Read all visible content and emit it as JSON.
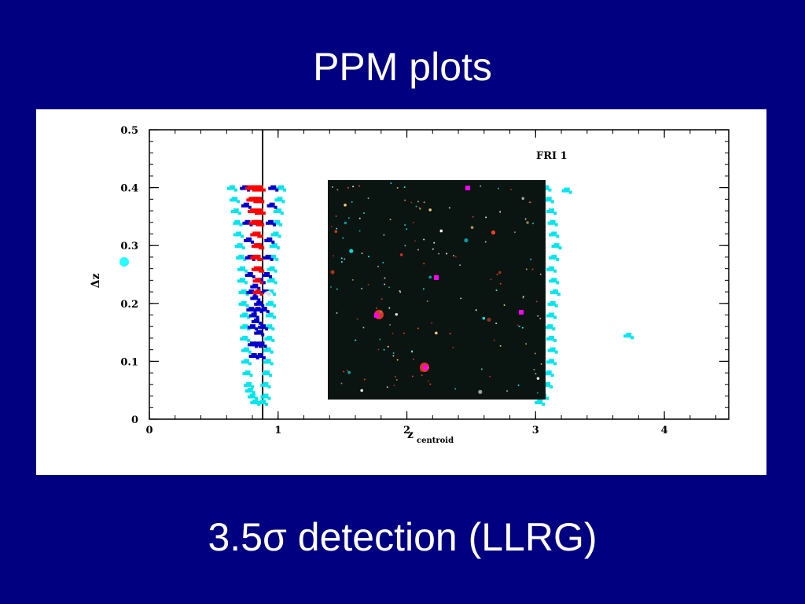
{
  "slide": {
    "title": "PPM plots",
    "caption": "3.5σ detection (LLRG)",
    "background_color": "#000080"
  },
  "chart_data": {
    "type": "scatter",
    "title": "",
    "xlabel_main": "z",
    "xlabel_sub": "centroid",
    "ylabel": "Δz",
    "annotation": "FRI 1",
    "xlim": [
      0,
      4.5
    ],
    "ylim": [
      0,
      0.5
    ],
    "x_ticks": [
      "0",
      "1",
      "2",
      "3",
      "4"
    ],
    "y_ticks": [
      "0",
      "0.1",
      "0.2",
      "0.3",
      "0.4",
      "0.5"
    ],
    "vertical_line_x": 0.88,
    "grid": false,
    "series": [
      {
        "color": "#00e5ee",
        "points": [
          [
            0.64,
            0.4
          ],
          [
            0.66,
            0.38
          ],
          [
            0.67,
            0.36
          ],
          [
            0.68,
            0.34
          ],
          [
            0.69,
            0.32
          ],
          [
            0.7,
            0.3
          ],
          [
            0.71,
            0.28
          ],
          [
            0.72,
            0.26
          ],
          [
            0.72,
            0.24
          ],
          [
            0.73,
            0.22
          ],
          [
            0.73,
            0.2
          ],
          [
            0.74,
            0.18
          ],
          [
            0.74,
            0.16
          ],
          [
            0.74,
            0.14
          ],
          [
            0.75,
            0.12
          ],
          [
            0.75,
            0.1
          ],
          [
            0.76,
            0.08
          ],
          [
            0.77,
            0.06
          ],
          [
            0.78,
            0.05
          ],
          [
            0.8,
            0.04
          ],
          [
            0.82,
            0.03
          ],
          [
            1.02,
            0.4
          ],
          [
            1.01,
            0.38
          ],
          [
            1.0,
            0.36
          ],
          [
            0.99,
            0.34
          ],
          [
            0.98,
            0.32
          ],
          [
            0.97,
            0.3
          ],
          [
            0.96,
            0.28
          ],
          [
            0.95,
            0.26
          ],
          [
            0.95,
            0.24
          ],
          [
            0.94,
            0.22
          ],
          [
            0.94,
            0.2
          ],
          [
            0.94,
            0.18
          ],
          [
            0.93,
            0.16
          ],
          [
            0.93,
            0.14
          ],
          [
            0.92,
            0.12
          ],
          [
            0.92,
            0.1
          ],
          [
            0.91,
            0.08
          ],
          [
            0.9,
            0.06
          ],
          [
            0.9,
            0.04
          ],
          [
            0.88,
            0.03
          ],
          [
            3.08,
            0.4
          ],
          [
            3.1,
            0.38
          ],
          [
            3.12,
            0.36
          ],
          [
            3.13,
            0.34
          ],
          [
            3.14,
            0.32
          ],
          [
            3.16,
            0.3
          ],
          [
            3.14,
            0.28
          ],
          [
            3.12,
            0.26
          ],
          [
            3.14,
            0.24
          ],
          [
            3.15,
            0.22
          ],
          [
            3.13,
            0.2
          ],
          [
            3.12,
            0.18
          ],
          [
            3.11,
            0.16
          ],
          [
            3.12,
            0.14
          ],
          [
            3.13,
            0.12
          ],
          [
            3.12,
            0.1
          ],
          [
            3.1,
            0.08
          ],
          [
            3.09,
            0.06
          ],
          [
            3.06,
            0.04
          ],
          [
            3.03,
            0.03
          ],
          [
            3.24,
            0.396
          ],
          [
            3.72,
            0.145
          ]
        ]
      },
      {
        "color": "#0000cc",
        "points": [
          [
            0.74,
            0.4
          ],
          [
            0.75,
            0.37
          ],
          [
            0.76,
            0.34
          ],
          [
            0.77,
            0.31
          ],
          [
            0.78,
            0.28
          ],
          [
            0.78,
            0.25
          ],
          [
            0.79,
            0.22
          ],
          [
            0.79,
            0.19
          ],
          [
            0.8,
            0.16
          ],
          [
            0.8,
            0.13
          ],
          [
            0.81,
            0.11
          ],
          [
            0.96,
            0.4
          ],
          [
            0.95,
            0.37
          ],
          [
            0.94,
            0.34
          ],
          [
            0.93,
            0.31
          ],
          [
            0.92,
            0.28
          ],
          [
            0.91,
            0.25
          ],
          [
            0.9,
            0.22
          ],
          [
            0.89,
            0.19
          ],
          [
            0.88,
            0.16
          ],
          [
            0.87,
            0.13
          ],
          [
            0.86,
            0.11
          ],
          [
            0.82,
            0.21
          ],
          [
            0.84,
            0.19
          ],
          [
            0.83,
            0.17
          ],
          [
            0.85,
            0.15
          ],
          [
            0.83,
            0.13
          ],
          [
            0.82,
            0.23
          ],
          [
            0.86,
            0.24
          ],
          [
            0.81,
            0.18
          ],
          [
            0.85,
            0.2
          ]
        ]
      },
      {
        "color": "#ff0000",
        "points": [
          [
            0.78,
            0.4
          ],
          [
            0.8,
            0.4
          ],
          [
            0.82,
            0.4
          ],
          [
            0.84,
            0.4
          ],
          [
            0.86,
            0.4
          ],
          [
            0.79,
            0.38
          ],
          [
            0.81,
            0.38
          ],
          [
            0.83,
            0.38
          ],
          [
            0.85,
            0.38
          ],
          [
            0.8,
            0.36
          ],
          [
            0.82,
            0.36
          ],
          [
            0.84,
            0.36
          ],
          [
            0.86,
            0.36
          ],
          [
            0.81,
            0.34
          ],
          [
            0.83,
            0.34
          ],
          [
            0.85,
            0.34
          ],
          [
            0.82,
            0.32
          ],
          [
            0.84,
            0.32
          ],
          [
            0.83,
            0.3
          ],
          [
            0.85,
            0.3
          ],
          [
            0.82,
            0.28
          ],
          [
            0.84,
            0.28
          ],
          [
            0.83,
            0.26
          ],
          [
            0.85,
            0.26
          ],
          [
            0.84,
            0.24
          ],
          [
            0.84,
            0.22
          ]
        ]
      }
    ],
    "inset_image": {
      "description_icon": "star-field-image",
      "background_color": "#0a1410",
      "star_colors": [
        "#ffffff",
        "#00ffff",
        "#ff4020",
        "#ffd080",
        "#ff00ff"
      ]
    }
  }
}
